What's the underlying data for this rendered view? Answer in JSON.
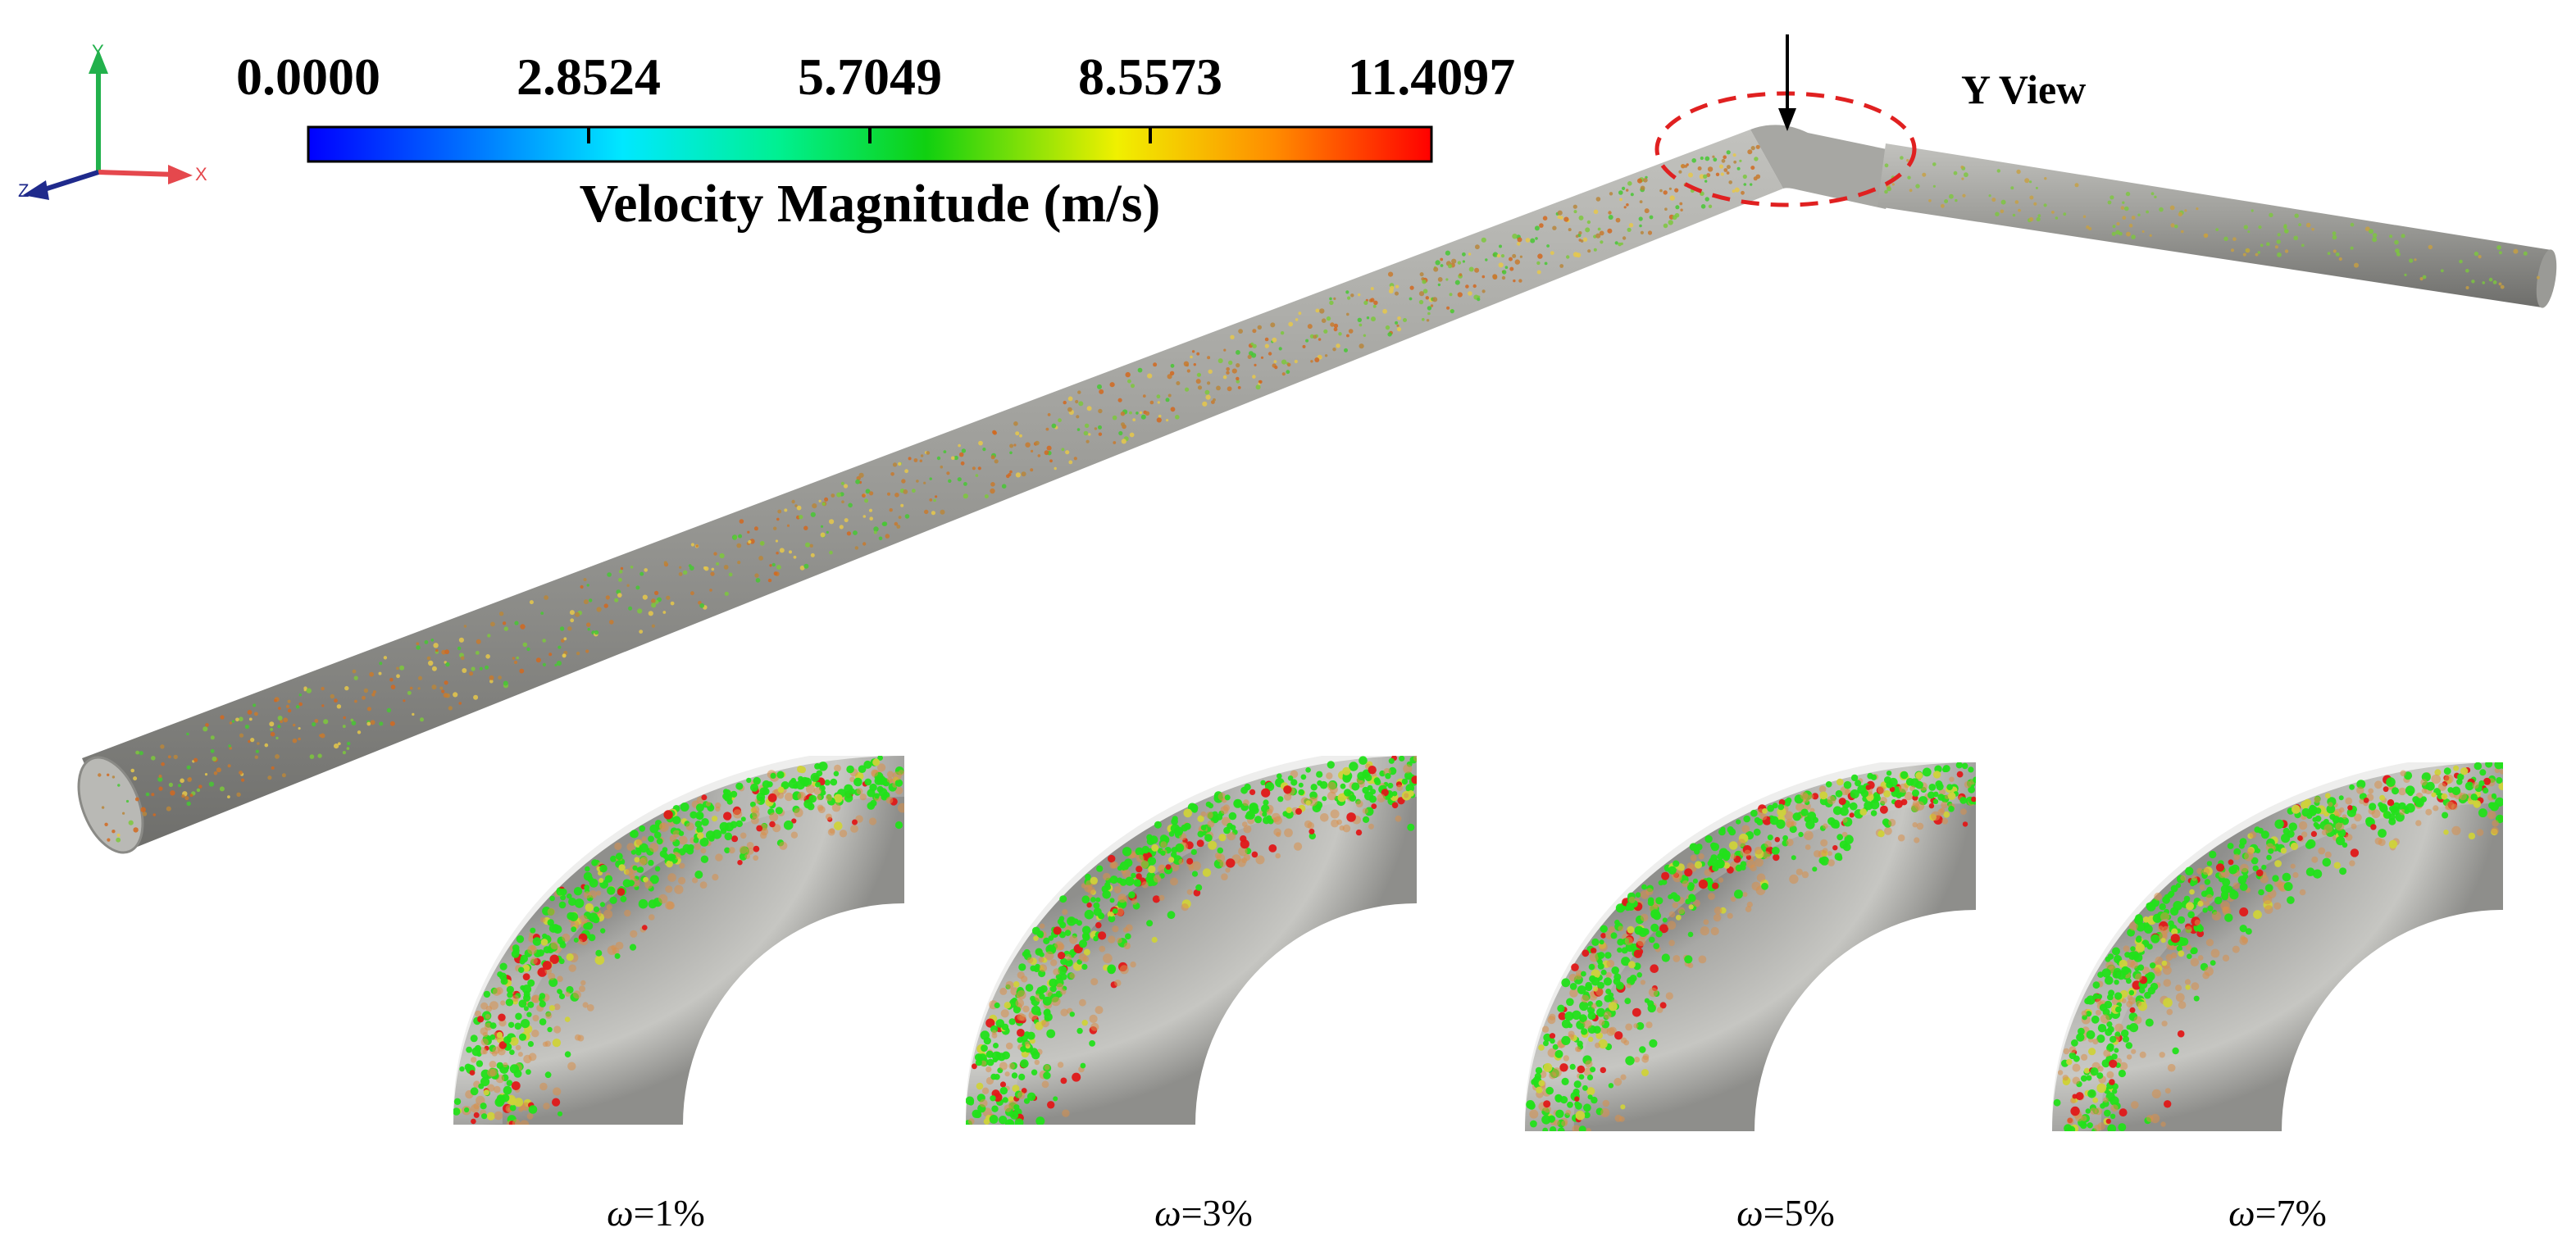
{
  "axes_triad": {
    "y_label": "Y",
    "x_label": "X",
    "z_label": "Z",
    "colors": {
      "y": "#22b14c",
      "x": "#e5484d",
      "z": "#1f2a8c"
    }
  },
  "colorbar": {
    "ticks": [
      "0.0000",
      "2.8524",
      "5.7049",
      "8.5573",
      "11.4097"
    ],
    "title": "Velocity Magnitude (m/s)",
    "colors": [
      "#0000ff",
      "#00a0ff",
      "#00ffff",
      "#00ff80",
      "#00e000",
      "#ffff00",
      "#ff8000",
      "#ff0000"
    ]
  },
  "view_label": "Y View",
  "annotation": {
    "ellipse_color": "#e02020"
  },
  "pipe": {
    "surface_color": "#9c9c98",
    "particle_colors": [
      "#c87a2e",
      "#d2691e",
      "#b8863b",
      "#46c832",
      "#7cc83c",
      "#e6c84a"
    ]
  },
  "cases": [
    {
      "symbol": "ω",
      "value": "=1%"
    },
    {
      "symbol": "ω",
      "value": "=3%"
    },
    {
      "symbol": "ω",
      "value": "=5%"
    },
    {
      "symbol": "ω",
      "value": "=7%"
    }
  ],
  "bend_particles": {
    "green": "#22e01a",
    "orange": "#d9904a",
    "red": "#e01818",
    "yellow": "#cfd23a"
  }
}
